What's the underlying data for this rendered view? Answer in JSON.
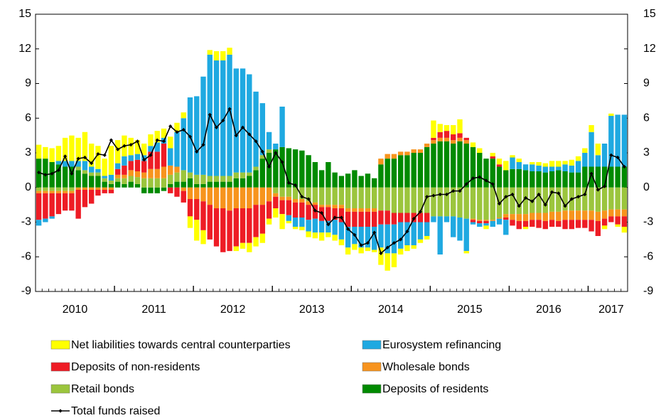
{
  "chart_data": {
    "type": "bar",
    "stacked": true,
    "categories": [
      null,
      null,
      null,
      null,
      null,
      null,
      "2010",
      null,
      null,
      null,
      null,
      null,
      null,
      null,
      null,
      null,
      null,
      null,
      "2011",
      null,
      null,
      null,
      null,
      null,
      null,
      null,
      null,
      null,
      null,
      null,
      "2012",
      null,
      null,
      null,
      null,
      null,
      null,
      null,
      null,
      null,
      null,
      null,
      "2013",
      null,
      null,
      null,
      null,
      null,
      null,
      null,
      null,
      null,
      null,
      null,
      "2014",
      null,
      null,
      null,
      null,
      null,
      null,
      null,
      null,
      null,
      null,
      null,
      "2015",
      null,
      null,
      null,
      null,
      null,
      null,
      null,
      null,
      null,
      null,
      null,
      "2016",
      null,
      null,
      null,
      null,
      null,
      null,
      null,
      null,
      "2017",
      null,
      null
    ],
    "ylim": [
      -9,
      15
    ],
    "yticks": [
      -9,
      -6,
      -3,
      0,
      3,
      6,
      9,
      12,
      15
    ],
    "y2lim": [
      -9,
      15
    ],
    "y2ticks": [
      -9,
      -6,
      -3,
      0,
      3,
      6,
      9,
      12,
      15
    ],
    "series": [
      {
        "name": "Deposits of residents",
        "color": "#008a00",
        "values": [
          2.5,
          2.5,
          2.2,
          2.0,
          1.8,
          1.8,
          1.5,
          1.2,
          1.0,
          1.0,
          0.5,
          0.3,
          0.5,
          0.3,
          0.5,
          0.3,
          -0.5,
          -0.5,
          -0.5,
          -0.3,
          0.3,
          0.5,
          0.5,
          0.8,
          0.3,
          0.3,
          0.5,
          0.5,
          0.5,
          0.5,
          0.8,
          0.8,
          1.0,
          1.5,
          2.5,
          3.0,
          3.3,
          3.5,
          3.4,
          3.3,
          3.2,
          2.8,
          2.2,
          1.5,
          2.2,
          1.3,
          1.0,
          1.2,
          1.5,
          1.0,
          1.2,
          0.8,
          2.0,
          2.5,
          2.5,
          2.8,
          2.8,
          3.0,
          3.0,
          3.5,
          3.8,
          4.0,
          4.0,
          3.8,
          4.0,
          3.8,
          3.5,
          3.0,
          2.5,
          2.5,
          1.8,
          1.5,
          1.6,
          1.6,
          1.5,
          1.4,
          1.4,
          1.3,
          1.4,
          1.5,
          1.4,
          1.3,
          1.3,
          1.8,
          1.8,
          1.8,
          1.8,
          1.8,
          1.8,
          1.8
        ]
      },
      {
        "name": "Retail bonds",
        "color": "#9bc53d",
        "values": [
          -0.3,
          -0.3,
          -0.3,
          -0.3,
          -0.3,
          -0.3,
          0.3,
          0.3,
          0.3,
          0.3,
          0.3,
          0.3,
          0.3,
          0.5,
          0.5,
          0.6,
          0.8,
          0.8,
          0.8,
          0.8,
          0.8,
          0.8,
          1.0,
          0.5,
          0.8,
          0.8,
          0.5,
          0.5,
          0.5,
          0.5,
          0.5,
          0.5,
          0.3,
          0.3,
          0.3,
          0.3,
          -0.5,
          -0.8,
          -0.8,
          -1.0,
          -1.0,
          -1.2,
          -1.3,
          -1.5,
          -1.5,
          -1.5,
          -1.5,
          -1.8,
          -1.8,
          -1.8,
          -1.8,
          -1.8,
          -2.0,
          -2.0,
          -2.2,
          -2.2,
          -2.2,
          -2.2,
          -2.2,
          -2.2,
          -2.5,
          -2.5,
          -2.5,
          -2.5,
          -2.6,
          -2.7,
          -2.7,
          -2.8,
          -2.8,
          -2.8,
          -2.6,
          -2.3,
          -2.3,
          -2.3,
          -2.3,
          -2.2,
          -2.2,
          -2.2,
          -2.1,
          -2.1,
          -2.0,
          -2.0,
          -2.0,
          -2.0,
          -2.0,
          -2.1,
          -2.0,
          -1.9,
          -1.9,
          -1.9
        ]
      },
      {
        "name": "Wholesale bonds",
        "color": "#f7941d",
        "values": [
          -0.2,
          -0.2,
          -0.2,
          -0.2,
          -0.2,
          -0.2,
          -0.2,
          -0.2,
          -0.2,
          -0.2,
          -0.2,
          -0.2,
          0.3,
          0.3,
          0.5,
          0.5,
          0.5,
          0.8,
          0.8,
          1.0,
          0.8,
          0.5,
          -0.3,
          -1.0,
          -1.0,
          -1.2,
          -1.5,
          -1.8,
          -1.8,
          -2.0,
          -1.8,
          -1.8,
          -1.8,
          -1.5,
          -1.5,
          -1.2,
          -0.3,
          -0.3,
          -0.3,
          -0.3,
          -0.3,
          -0.3,
          -0.2,
          -0.2,
          -0.2,
          -0.3,
          -0.3,
          -0.3,
          -0.3,
          -0.3,
          -0.3,
          -0.3,
          0.5,
          0.4,
          0.4,
          0.3,
          0.3,
          0.3,
          0.3,
          0.3,
          0.3,
          0.3,
          0.3,
          0.3,
          0.3,
          0.3,
          -0.1,
          -0.1,
          -0.1,
          -0.1,
          -0.1,
          -0.3,
          -0.5,
          -0.6,
          -0.6,
          -0.6,
          -0.6,
          -0.7,
          -0.7,
          -0.8,
          -0.8,
          -0.8,
          -0.8,
          -0.8,
          -0.8,
          -0.8,
          -0.7,
          -0.6,
          -0.6,
          -0.6
        ]
      },
      {
        "name": "Deposits of non-residents",
        "color": "#ee1c25",
        "values": [
          -2.3,
          -2.2,
          -2.0,
          -1.8,
          -1.5,
          -1.5,
          -2.5,
          -1.5,
          -1.2,
          -0.5,
          -0.3,
          -0.3,
          0.5,
          0.8,
          0.8,
          1.0,
          1.0,
          1.5,
          1.5,
          2.0,
          -0.5,
          -0.8,
          -1.0,
          -1.5,
          -1.8,
          -2.5,
          -3.0,
          -3.3,
          -3.8,
          -3.5,
          -3.3,
          -3.0,
          -3.0,
          -2.8,
          -2.5,
          -1.5,
          -1.0,
          -1.2,
          -1.3,
          -1.3,
          -1.3,
          -1.3,
          -1.2,
          -1.2,
          -1.2,
          -1.0,
          -1.2,
          -1.3,
          -1.3,
          -1.3,
          -1.3,
          -1.3,
          -1.2,
          -1.2,
          -1.0,
          -0.8,
          -0.8,
          -0.8,
          -0.8,
          -0.8,
          0.2,
          0.5,
          0.6,
          0.5,
          0.4,
          0.2,
          -0.2,
          -0.2,
          -0.2,
          0.2,
          0.2,
          -0.2,
          -0.5,
          -0.7,
          -0.5,
          -0.6,
          -0.7,
          -0.7,
          -0.6,
          -0.5,
          -0.8,
          -0.8,
          -0.7,
          -0.7,
          -1.0,
          -1.3,
          -0.6,
          -0.5,
          -0.7,
          -0.9
        ]
      },
      {
        "name": "Eurosystem refinancing",
        "color": "#1fa9e1",
        "values": [
          -0.5,
          -0.3,
          -0.2,
          0.3,
          0.5,
          0.5,
          0.5,
          0.8,
          0.5,
          0.3,
          0.2,
          0.5,
          0.5,
          0.8,
          0.5,
          0.5,
          0.5,
          0.5,
          0.8,
          0.5,
          1.5,
          3.0,
          4.5,
          6.5,
          6.8,
          8.5,
          10.5,
          10.0,
          10.0,
          10.5,
          9.0,
          9.0,
          8.5,
          6.5,
          4.5,
          1.5,
          0.5,
          3.5,
          -0.5,
          -0.8,
          -0.8,
          -1.0,
          -1.2,
          -1.0,
          -1.0,
          -1.3,
          -1.5,
          -1.8,
          -1.5,
          -1.8,
          -1.8,
          -2.0,
          -2.0,
          -2.5,
          -2.5,
          -2.3,
          -2.0,
          -2.0,
          -1.5,
          -1.2,
          -0.5,
          -3.3,
          -0.5,
          -1.8,
          -2.0,
          -2.8,
          -0.2,
          -0.3,
          -0.2,
          -0.5,
          -0.5,
          -1.3,
          1.0,
          0.6,
          0.5,
          0.6,
          0.5,
          0.5,
          0.4,
          0.3,
          0.6,
          0.6,
          1.0,
          1.2,
          3.0,
          1.0,
          2.0,
          4.4,
          4.5,
          4.5
        ]
      },
      {
        "name": "Net liabilities towards central counterparties",
        "color": "#ffff00",
        "values": [
          1.2,
          1.0,
          1.2,
          1.3,
          2.0,
          2.2,
          2.0,
          2.5,
          2.0,
          2.0,
          1.5,
          2.5,
          2.0,
          1.8,
          1.5,
          1.2,
          1.0,
          1.0,
          1.0,
          0.8,
          1.0,
          0.8,
          0.5,
          -1.0,
          -1.8,
          -1.2,
          0.4,
          0.8,
          0.8,
          0.6,
          -0.4,
          -0.5,
          -0.8,
          -0.8,
          -0.8,
          -0.5,
          -0.8,
          -1.3,
          -0.2,
          -0.2,
          -0.3,
          -0.5,
          -0.5,
          -0.7,
          -0.4,
          -0.5,
          -0.5,
          -0.6,
          -0.5,
          -0.5,
          -0.3,
          -0.2,
          -1.5,
          -1.5,
          -1.2,
          -0.5,
          -0.5,
          -0.3,
          -0.3,
          -0.3,
          1.5,
          0.7,
          0.5,
          0.8,
          1.2,
          -0.2,
          0.4,
          0.4,
          -0.3,
          0.3,
          0.5,
          0.8,
          0.2,
          0.3,
          -0.2,
          0.2,
          0.3,
          0.3,
          0.5,
          0.5,
          0.3,
          0.5,
          0.4,
          0.4,
          0.6,
          1.0,
          -0.3,
          0.2,
          -0.2,
          -0.5
        ]
      },
      {
        "name": "Total funds raised",
        "color": "#000000",
        "type": "line",
        "values": [
          1.3,
          1.1,
          1.2,
          1.5,
          2.7,
          1.2,
          2.5,
          2.6,
          2.1,
          2.9,
          2.8,
          4.1,
          3.3,
          3.6,
          3.7,
          4.0,
          2.4,
          2.8,
          4.1,
          4.0,
          5.3,
          4.8,
          5.0,
          4.4,
          3.1,
          3.7,
          6.3,
          5.2,
          5.8,
          6.8,
          4.5,
          5.2,
          4.6,
          4.0,
          3.1,
          1.8,
          3.0,
          2.2,
          0.4,
          0.2,
          -0.8,
          -1.0,
          -2.0,
          -2.2,
          -3.2,
          -2.6,
          -2.6,
          -3.6,
          -4.1,
          -5.0,
          -4.8,
          -3.9,
          -5.7,
          -5.2,
          -4.8,
          -4.5,
          -3.8,
          -2.7,
          -2.1,
          -0.8,
          -0.7,
          -0.6,
          -0.6,
          -0.3,
          -0.3,
          0.3,
          0.8,
          0.9,
          0.6,
          0.3,
          -1.4,
          -0.8,
          -0.6,
          -1.6,
          -0.9,
          -1.2,
          -0.6,
          -1.5,
          -0.4,
          -0.5,
          -1.6,
          -1.0,
          -0.8,
          -0.6,
          1.2,
          -0.2,
          0.1,
          2.8,
          2.6,
          1.8
        ]
      }
    ]
  }
}
